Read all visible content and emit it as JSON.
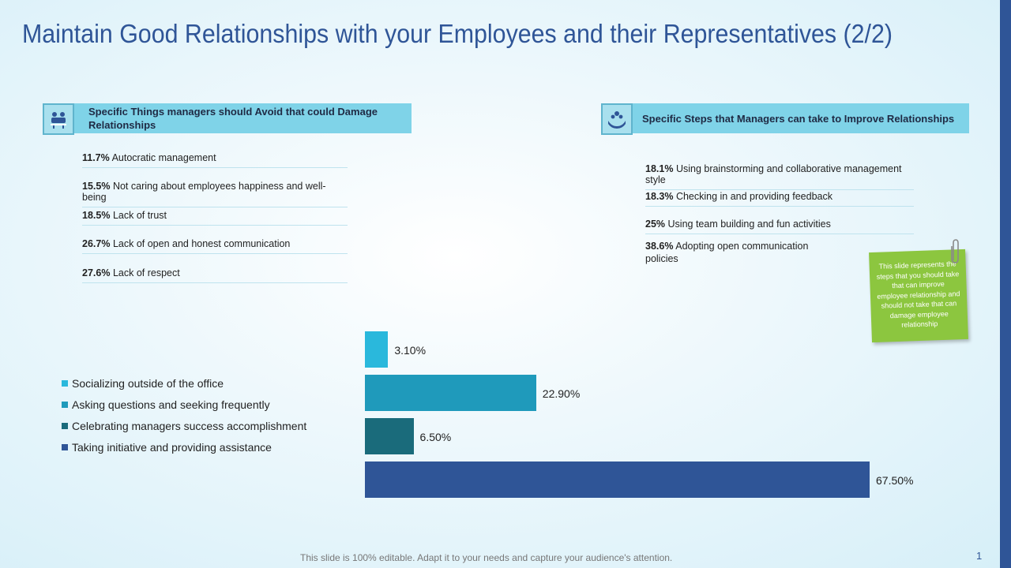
{
  "title": "Maintain Good Relationships with your Employees and their Representatives (2/2)",
  "left_panel": {
    "header_line1": "Specific Things managers should Avoid that could Damage",
    "header_line2": "Relationships",
    "icon": "team-meeting-icon",
    "items": [
      {
        "pct": "11.7%",
        "text": "Autocratic management"
      },
      {
        "pct": "15.5%",
        "text": "Not caring about employees happiness and well-being"
      },
      {
        "pct": "18.5%",
        "text": "Lack of trust"
      },
      {
        "pct": "26.7%",
        "text": "Lack of open and honest communication"
      },
      {
        "pct": "27.6%",
        "text": "Lack of respect"
      }
    ]
  },
  "right_panel": {
    "header": "Specific Steps that Managers can take to Improve Relationships",
    "icon": "team-care-icon",
    "items": [
      {
        "pct": "18.1%",
        "text": "Using brainstorming and collaborative management style"
      },
      {
        "pct": "18.3%",
        "text": "Checking in and providing feedback"
      },
      {
        "pct": "25%",
        "text": "Using team building and fun activities"
      },
      {
        "pct": "38.6%",
        "text_line1": "Adopting open communication",
        "text_line2": "policies"
      }
    ]
  },
  "chart_data": {
    "type": "bar",
    "orientation": "horizontal",
    "categories": [
      "Socializing outside of the office",
      "Asking questions and seeking frequently",
      "Celebrating managers success accomplishment",
      "Taking initiative and providing assistance"
    ],
    "values": [
      3.1,
      22.9,
      6.5,
      67.5
    ],
    "value_labels": [
      "3.10%",
      "22.90%",
      "6.50%",
      "67.50%"
    ],
    "colors": [
      "#2ab8dc",
      "#1f9abb",
      "#1a6b7b",
      "#2f5597"
    ],
    "legend_position": "left",
    "xlim": [
      0,
      67.5
    ]
  },
  "note": {
    "text": "This slide represents the steps that you should take that can improve employee relationship and should not take that can damage employee relationship"
  },
  "footer": "This slide is 100% editable. Adapt it to your needs and capture your audience's attention.",
  "page_number": "1",
  "colors": {
    "accent": "#2f5597",
    "header_fill": "#7fd3e8",
    "note": "#8cc63f"
  }
}
